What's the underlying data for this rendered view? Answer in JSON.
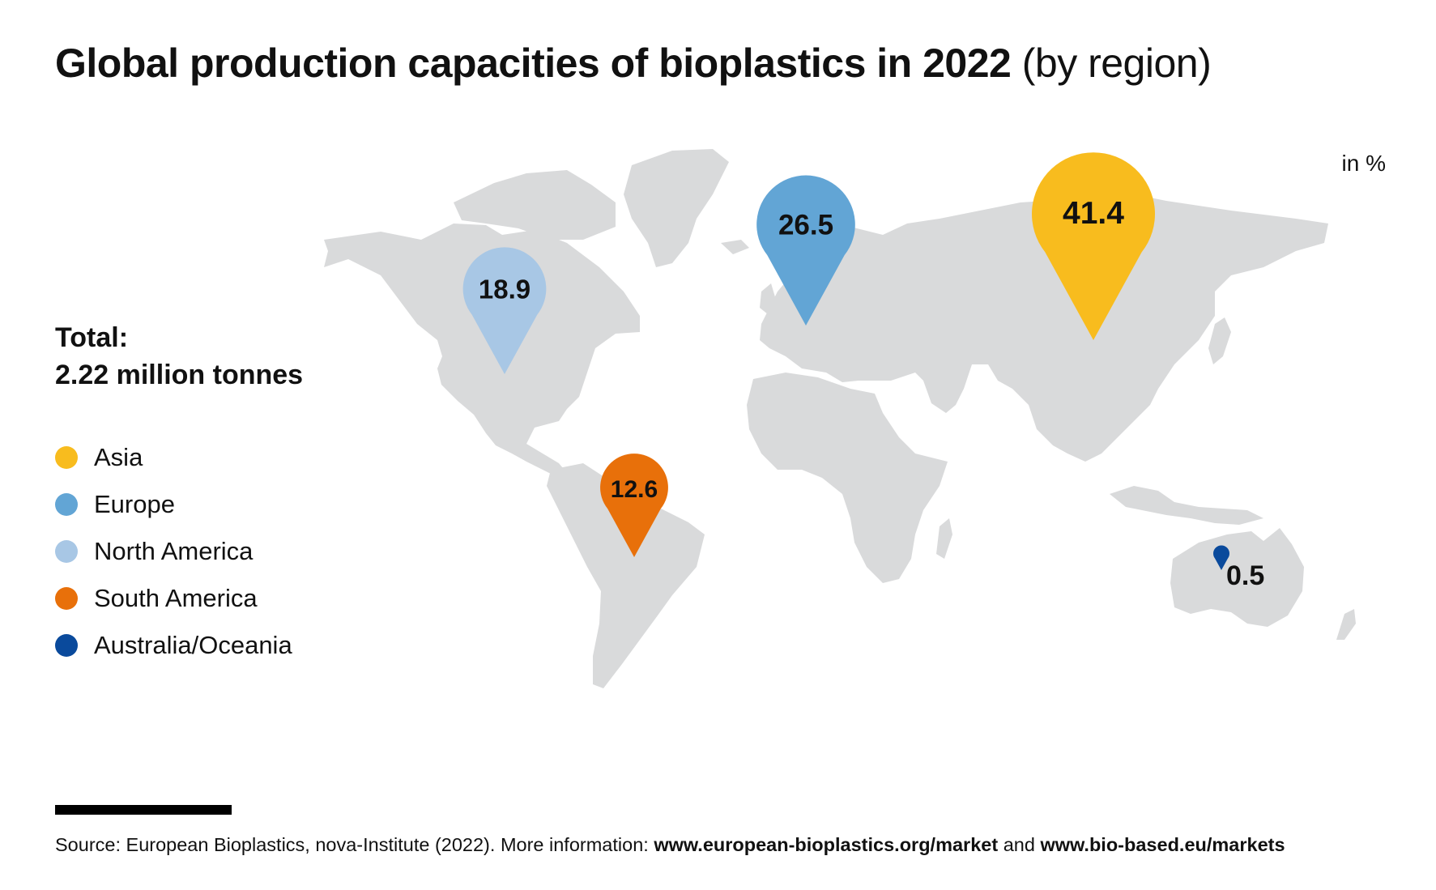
{
  "title": {
    "bold": "Global production capacities of bioplastics in 2022",
    "light": "(by region)"
  },
  "unit": "in %",
  "total": {
    "label": "Total:",
    "value": "2.22 million tonnes"
  },
  "legend": [
    {
      "label": "Asia",
      "color": "#F8BC1E"
    },
    {
      "label": "Europe",
      "color": "#62A5D5"
    },
    {
      "label": "North America",
      "color": "#A8C7E5"
    },
    {
      "label": "South America",
      "color": "#E8700A"
    },
    {
      "label": "Australia/Oceania",
      "color": "#0A4A9C"
    }
  ],
  "chart_data": {
    "type": "map",
    "regions": [
      {
        "name": "Asia",
        "value": 41.4,
        "label": "41.4",
        "color": "#F8BC1E"
      },
      {
        "name": "Europe",
        "value": 26.5,
        "label": "26.5",
        "color": "#62A5D5"
      },
      {
        "name": "North America",
        "value": 18.9,
        "label": "18.9",
        "color": "#A8C7E5"
      },
      {
        "name": "South America",
        "value": 12.6,
        "label": "12.6",
        "color": "#E8700A"
      },
      {
        "name": "Australia/Oceania",
        "value": 0.5,
        "label": "0.5",
        "color": "#0A4A9C"
      }
    ],
    "land_color": "#D9DADB"
  },
  "source": {
    "prefix": "Source: European Bioplastics, nova-Institute (2022). More information:",
    "link1": "www.european-bioplastics.org/market",
    "conjunction": "and",
    "link2": "www.bio-based.eu/markets"
  }
}
